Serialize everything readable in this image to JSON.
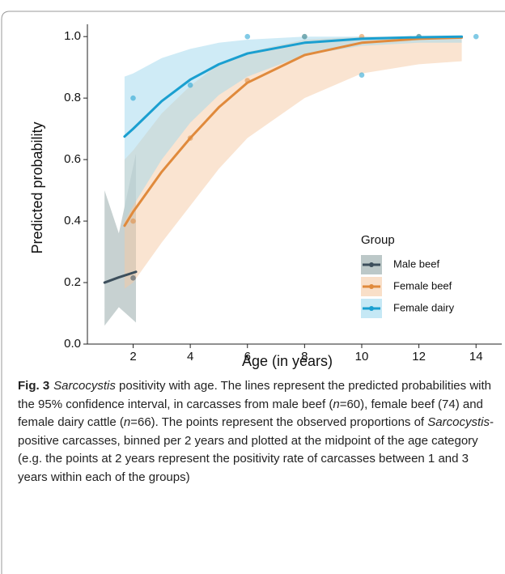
{
  "chart_data": {
    "type": "line",
    "xlabel": "Age (in years)",
    "ylabel": "Predicted probability",
    "xlim": [
      0.4,
      14.9
    ],
    "ylim": [
      0,
      1.04
    ],
    "xticks": [
      2,
      4,
      6,
      8,
      10,
      12,
      14
    ],
    "yticks": [
      {
        "value": 0,
        "label": "0.0"
      },
      {
        "value": 0.2,
        "label": "0.2"
      },
      {
        "value": 0.4,
        "label": "0.4"
      },
      {
        "value": 0.6,
        "label": "0.6"
      },
      {
        "value": 0.8,
        "label": "0.8"
      },
      {
        "value": 1,
        "label": "1.0"
      }
    ],
    "grid": false,
    "legend": {
      "title": "Group",
      "position": "lower right"
    },
    "series": [
      {
        "name": "Male beef",
        "color": "#3d4f5c",
        "band_color": "#8fa3a3",
        "x": [
          1,
          1.5,
          2.1
        ],
        "values": [
          0.2,
          0.217,
          0.235
        ],
        "lower": [
          0.06,
          0.12,
          0.07
        ],
        "upper": [
          0.5,
          0.36,
          0.62
        ],
        "points_x": [
          2
        ],
        "points": [
          0.215
        ]
      },
      {
        "name": "Female beef",
        "color": "#e08a3c",
        "band_color": "#f5c9a4",
        "x": [
          1.7,
          2,
          3,
          4,
          5,
          6,
          8,
          10,
          12,
          13.5
        ],
        "values": [
          0.385,
          0.43,
          0.56,
          0.67,
          0.77,
          0.85,
          0.94,
          0.98,
          0.993,
          0.997
        ],
        "lower": [
          0.18,
          0.2,
          0.33,
          0.45,
          0.57,
          0.67,
          0.8,
          0.88,
          0.91,
          0.92
        ],
        "upper": [
          0.6,
          0.63,
          0.75,
          0.84,
          0.91,
          0.95,
          0.99,
          1.0,
          1.0,
          1.0
        ],
        "points_x": [
          2,
          4,
          6,
          8,
          10,
          12
        ],
        "points": [
          0.4,
          0.67,
          0.857,
          1.0,
          1.0,
          1.0
        ]
      },
      {
        "name": "Female dairy",
        "color": "#1a9fd0",
        "band_color": "#9fd8ee",
        "x": [
          1.7,
          2,
          3,
          4,
          5,
          6,
          8,
          10,
          12,
          13.5
        ],
        "values": [
          0.675,
          0.7,
          0.79,
          0.86,
          0.91,
          0.945,
          0.98,
          0.993,
          0.998,
          1.0
        ],
        "lower": [
          0.4,
          0.45,
          0.6,
          0.72,
          0.81,
          0.87,
          0.94,
          0.97,
          0.98,
          0.98
        ],
        "upper": [
          0.87,
          0.88,
          0.93,
          0.96,
          0.98,
          0.99,
          1.0,
          1.0,
          1.0,
          1.0
        ],
        "points_x": [
          2,
          4,
          6,
          8,
          10,
          12,
          14
        ],
        "points": [
          0.8,
          0.842,
          1.0,
          1.0,
          0.875,
          1.0,
          1.0
        ]
      }
    ]
  },
  "caption": [
    {
      "text": "Fig. 3",
      "style": "bold"
    },
    {
      "text": "Sarcocystis",
      "style": "italic"
    },
    {
      "text": " positivity with age. The lines represent the predicted probabilities with the 95% confidence interval, in carcasses from male beef (",
      "style": "normal"
    },
    {
      "text": "n",
      "style": "italic"
    },
    {
      "text": "=60), female beef (74) and female dairy cattle (",
      "style": "normal"
    },
    {
      "text": "n",
      "style": "italic"
    },
    {
      "text": "=66). The points represent the observed proportions of ",
      "style": "normal"
    },
    {
      "text": "Sarcocystis",
      "style": "italic"
    },
    {
      "text": "-positive carcasses, binned per 2 years and plotted at the midpoint of the age category (e.g. the points at 2 years represent the positivity rate of carcasses between 1 and 3 years within each of the groups)",
      "style": "normal"
    }
  ]
}
